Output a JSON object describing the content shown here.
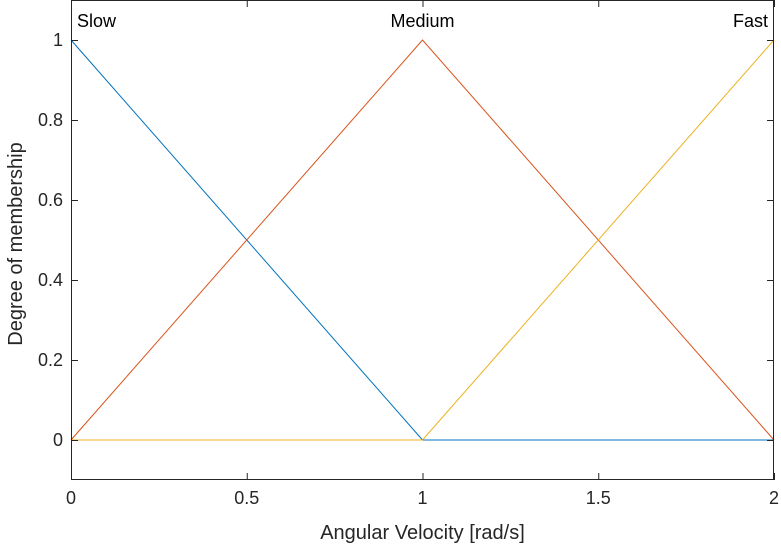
{
  "chart_data": {
    "type": "line",
    "xlabel": "Angular Velocity [rad/s]",
    "ylabel": "Degree of membership",
    "xlim": [
      0,
      2
    ],
    "ylim": [
      -0.1,
      1.1
    ],
    "xticks": [
      "0",
      "0.5",
      "1",
      "1.5",
      "2"
    ],
    "xtick_values": [
      0,
      0.5,
      1,
      1.5,
      2
    ],
    "yticks": [
      "0",
      "0.2",
      "0.4",
      "0.6",
      "0.8",
      "1"
    ],
    "ytick_values": [
      0,
      0.2,
      0.4,
      0.6,
      0.8,
      1
    ],
    "grid": false,
    "series": [
      {
        "name": "Slow",
        "color": "#0072BD",
        "x": [
          0,
          1,
          2
        ],
        "y": [
          1,
          0,
          0
        ]
      },
      {
        "name": "Medium",
        "color": "#D95319",
        "x": [
          0,
          1,
          2
        ],
        "y": [
          0,
          1,
          0
        ]
      },
      {
        "name": "Fast",
        "color": "#EDB120",
        "x": [
          0,
          1,
          2
        ],
        "y": [
          0,
          0,
          1
        ]
      }
    ],
    "annotations": [
      {
        "text": "Slow",
        "x": 0,
        "y": 1,
        "align": "start"
      },
      {
        "text": "Medium",
        "x": 1,
        "y": 1,
        "align": "middle"
      },
      {
        "text": "Fast",
        "x": 2,
        "y": 1,
        "align": "end"
      }
    ]
  }
}
